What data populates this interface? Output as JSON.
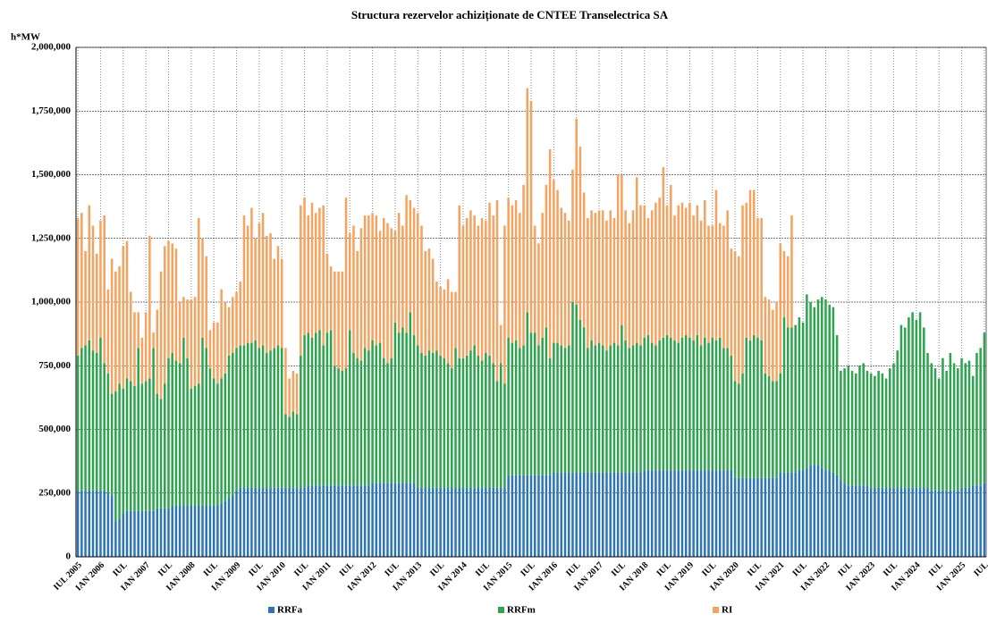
{
  "chart_data": {
    "type": "stacked-bar",
    "title": "Structura rezervelor achiziționate de CNTEE Transelectrica SA",
    "y_label": "h*MW",
    "ylim": [
      0,
      2000000
    ],
    "yticks": [
      0,
      {
        "value": 250000,
        "label": "250,000"
      },
      {
        "value": 500000,
        "label": "500,000"
      },
      {
        "value": 750000,
        "label": "750,000"
      },
      {
        "value": 1000000,
        "label": "1,000,000"
      },
      {
        "value": 1250000,
        "label": "1,250,000"
      },
      {
        "value": 1500000,
        "label": "1,500,000"
      },
      {
        "value": 1750000,
        "label": "1,750,000"
      },
      {
        "value": 2000000,
        "label": "2,000,000"
      }
    ],
    "grid": true,
    "categories": [
      "IUL 2005",
      null,
      null,
      null,
      null,
      null,
      "IAN 2006",
      null,
      null,
      null,
      null,
      null,
      "IUL",
      null,
      null,
      null,
      null,
      null,
      "IAN 2007",
      null,
      null,
      null,
      null,
      null,
      "IUL",
      null,
      null,
      null,
      null,
      null,
      "IAN 2008",
      null,
      null,
      null,
      null,
      null,
      "IUL",
      null,
      null,
      null,
      null,
      null,
      "IAN 2009",
      null,
      null,
      null,
      null,
      null,
      "IUL",
      null,
      null,
      null,
      null,
      null,
      "IAN 2010",
      null,
      null,
      null,
      null,
      null,
      "IUL",
      null,
      null,
      null,
      null,
      null,
      "IAN 2011",
      null,
      null,
      null,
      null,
      null,
      "IUL",
      null,
      null,
      null,
      null,
      null,
      "IAN 2012",
      null,
      null,
      null,
      null,
      null,
      "IUL",
      null,
      null,
      null,
      null,
      null,
      "IAN 2013",
      null,
      null,
      null,
      null,
      null,
      "IUL",
      null,
      null,
      null,
      null,
      null,
      "IAN 2014",
      null,
      null,
      null,
      null,
      null,
      "IUL",
      null,
      null,
      null,
      null,
      null,
      "IAN 2015",
      null,
      null,
      null,
      null,
      null,
      "IUL",
      null,
      null,
      null,
      null,
      null,
      "IAN 2016",
      null,
      null,
      null,
      null,
      null,
      "IUL",
      null,
      null,
      null,
      null,
      null,
      "IAN 2017",
      null,
      null,
      null,
      null,
      null,
      "IUL",
      null,
      null,
      null,
      null,
      null,
      "IAN 2018",
      null,
      null,
      null,
      null,
      null,
      "IUL",
      null,
      null,
      null,
      null,
      null,
      "IAN 2019",
      null,
      null,
      null,
      null,
      null,
      "IUL",
      null,
      null,
      null,
      null,
      null,
      "IAN 2020",
      null,
      null,
      null,
      null,
      null,
      "IUL",
      null,
      null,
      null,
      null,
      null,
      "IAN 2021",
      null,
      null,
      null,
      null,
      null,
      "IUL",
      null,
      null,
      null,
      null,
      null,
      "IAN 2022",
      null,
      null,
      null,
      null,
      null,
      "IUL",
      null,
      null,
      null,
      null,
      null,
      "IAN 2023",
      null,
      null,
      null,
      null,
      null,
      "IUL",
      null,
      null,
      null,
      null,
      null,
      "IAN 2024",
      null,
      null,
      null,
      null,
      null,
      "IUL",
      null,
      null,
      null,
      null,
      null,
      "IAN 2025",
      null,
      null,
      null,
      null,
      null,
      "IUL"
    ],
    "series": [
      {
        "name": "RRFa",
        "color": "#2e75b6",
        "values": [
          260000,
          260000,
          260000,
          260000,
          260000,
          260000,
          260000,
          260000,
          250000,
          240000,
          140000,
          150000,
          170000,
          180000,
          180000,
          180000,
          180000,
          180000,
          180000,
          180000,
          180000,
          190000,
          190000,
          190000,
          190000,
          200000,
          200000,
          200000,
          200000,
          200000,
          200000,
          200000,
          200000,
          200000,
          200000,
          200000,
          200000,
          200000,
          210000,
          220000,
          230000,
          240000,
          260000,
          270000,
          270000,
          270000,
          270000,
          270000,
          270000,
          270000,
          270000,
          270000,
          270000,
          270000,
          270000,
          270000,
          270000,
          270000,
          270000,
          270000,
          270000,
          280000,
          280000,
          280000,
          280000,
          280000,
          280000,
          280000,
          280000,
          280000,
          280000,
          280000,
          280000,
          280000,
          280000,
          280000,
          280000,
          280000,
          290000,
          290000,
          290000,
          290000,
          290000,
          290000,
          290000,
          290000,
          290000,
          290000,
          290000,
          290000,
          270000,
          270000,
          270000,
          270000,
          270000,
          270000,
          270000,
          270000,
          270000,
          270000,
          270000,
          270000,
          270000,
          270000,
          270000,
          270000,
          270000,
          270000,
          270000,
          270000,
          270000,
          270000,
          270000,
          270000,
          320000,
          320000,
          320000,
          320000,
          320000,
          320000,
          320000,
          320000,
          320000,
          320000,
          320000,
          320000,
          330000,
          330000,
          330000,
          330000,
          330000,
          330000,
          330000,
          330000,
          330000,
          330000,
          330000,
          330000,
          330000,
          330000,
          330000,
          330000,
          330000,
          330000,
          330000,
          330000,
          330000,
          330000,
          330000,
          330000,
          340000,
          340000,
          340000,
          340000,
          340000,
          340000,
          340000,
          340000,
          340000,
          340000,
          340000,
          340000,
          340000,
          340000,
          340000,
          340000,
          340000,
          340000,
          340000,
          340000,
          340000,
          340000,
          340000,
          340000,
          310000,
          310000,
          310000,
          310000,
          310000,
          310000,
          310000,
          310000,
          310000,
          310000,
          310000,
          310000,
          330000,
          330000,
          330000,
          330000,
          330000,
          340000,
          340000,
          350000,
          360000,
          360000,
          360000,
          350000,
          340000,
          340000,
          330000,
          320000,
          300000,
          290000,
          280000,
          280000,
          280000,
          280000,
          280000,
          280000,
          270000,
          270000,
          270000,
          270000,
          270000,
          270000,
          270000,
          270000,
          270000,
          270000,
          270000,
          270000,
          270000,
          270000,
          270000,
          270000,
          260000,
          260000,
          260000,
          260000,
          260000,
          260000,
          260000,
          260000,
          270000,
          270000,
          270000,
          280000,
          280000,
          280000,
          290000
        ]
      },
      {
        "name": "RRFm",
        "color": "#2ea44f",
        "values": [
          530000,
          560000,
          570000,
          590000,
          550000,
          540000,
          600000,
          500000,
          470000,
          400000,
          510000,
          530000,
          490000,
          520000,
          510000,
          490000,
          640000,
          500000,
          510000,
          520000,
          640000,
          450000,
          430000,
          490000,
          590000,
          600000,
          570000,
          560000,
          660000,
          580000,
          460000,
          470000,
          480000,
          660000,
          620000,
          540000,
          500000,
          480000,
          490000,
          500000,
          560000,
          560000,
          560000,
          560000,
          560000,
          570000,
          570000,
          580000,
          550000,
          560000,
          530000,
          540000,
          550000,
          560000,
          550000,
          290000,
          280000,
          300000,
          290000,
          520000,
          600000,
          600000,
          580000,
          600000,
          610000,
          550000,
          600000,
          610000,
          470000,
          460000,
          450000,
          460000,
          610000,
          520000,
          500000,
          490000,
          540000,
          530000,
          560000,
          540000,
          550000,
          490000,
          470000,
          490000,
          630000,
          590000,
          610000,
          590000,
          670000,
          580000,
          560000,
          530000,
          520000,
          540000,
          530000,
          540000,
          520000,
          510000,
          490000,
          470000,
          550000,
          510000,
          510000,
          520000,
          540000,
          560000,
          520000,
          500000,
          530000,
          520000,
          490000,
          420000,
          490000,
          410000,
          540000,
          520000,
          530000,
          500000,
          510000,
          640000,
          560000,
          560000,
          510000,
          540000,
          580000,
          460000,
          510000,
          510000,
          500000,
          490000,
          500000,
          670000,
          660000,
          600000,
          570000,
          490000,
          520000,
          500000,
          510000,
          500000,
          480000,
          500000,
          510000,
          500000,
          580000,
          520000,
          490000,
          500000,
          510000,
          500000,
          520000,
          530000,
          500000,
          490000,
          510000,
          520000,
          530000,
          520000,
          510000,
          500000,
          520000,
          530000,
          520000,
          510000,
          530000,
          490000,
          520000,
          500000,
          520000,
          510000,
          520000,
          480000,
          480000,
          450000,
          380000,
          370000,
          410000,
          550000,
          540000,
          560000,
          550000,
          540000,
          410000,
          400000,
          380000,
          380000,
          390000,
          610000,
          570000,
          570000,
          580000,
          600000,
          580000,
          680000,
          640000,
          620000,
          650000,
          670000,
          670000,
          650000,
          650000,
          550000,
          430000,
          450000,
          470000,
          450000,
          440000,
          470000,
          480000,
          450000,
          450000,
          440000,
          460000,
          450000,
          430000,
          470000,
          490000,
          540000,
          640000,
          630000,
          670000,
          690000,
          660000,
          690000,
          630000,
          530000,
          500000,
          480000,
          440000,
          520000,
          470000,
          540000,
          500000,
          480000,
          510000,
          490000,
          500000,
          430000,
          520000,
          540000,
          590000
        ]
      },
      {
        "name": "RI",
        "color": "#f4a460",
        "values": [
          540000,
          530000,
          370000,
          530000,
          490000,
          390000,
          460000,
          580000,
          330000,
          530000,
          470000,
          460000,
          560000,
          540000,
          350000,
          290000,
          140000,
          180000,
          270000,
          560000,
          60000,
          330000,
          500000,
          540000,
          460000,
          430000,
          440000,
          240000,
          160000,
          230000,
          350000,
          350000,
          650000,
          390000,
          360000,
          150000,
          220000,
          240000,
          350000,
          280000,
          190000,
          220000,
          220000,
          250000,
          510000,
          460000,
          530000,
          400000,
          490000,
          520000,
          460000,
          460000,
          350000,
          390000,
          350000,
          260000,
          150000,
          160000,
          160000,
          590000,
          540000,
          460000,
          530000,
          470000,
          480000,
          550000,
          310000,
          250000,
          370000,
          380000,
          390000,
          670000,
          380000,
          500000,
          420000,
          520000,
          520000,
          530000,
          500000,
          510000,
          440000,
          550000,
          550000,
          510000,
          360000,
          470000,
          400000,
          540000,
          440000,
          500000,
          520000,
          500000,
          410000,
          400000,
          370000,
          270000,
          270000,
          270000,
          330000,
          300000,
          220000,
          600000,
          520000,
          540000,
          550000,
          510000,
          510000,
          560000,
          520000,
          600000,
          580000,
          710000,
          150000,
          620000,
          550000,
          540000,
          550000,
          530000,
          630000,
          880000,
          910000,
          420000,
          400000,
          490000,
          560000,
          820000,
          640000,
          600000,
          540000,
          530000,
          490000,
          520000,
          730000,
          680000,
          530000,
          510000,
          510000,
          520000,
          520000,
          530000,
          510000,
          530000,
          490000,
          670000,
          590000,
          510000,
          490000,
          530000,
          650000,
          550000,
          520000,
          460000,
          520000,
          560000,
          560000,
          670000,
          510000,
          600000,
          490000,
          540000,
          530000,
          500000,
          530000,
          490000,
          510000,
          490000,
          540000,
          460000,
          440000,
          590000,
          450000,
          480000,
          540000,
          420000,
          510000,
          500000,
          660000,
          530000,
          590000,
          570000,
          470000,
          480000,
          300000,
          300000,
          280000,
          310000,
          510000,
          260000,
          280000,
          440000,
          0,
          0,
          0,
          0,
          0,
          0,
          0,
          0,
          0,
          0,
          0,
          0,
          0,
          0,
          0,
          0,
          0,
          0,
          0,
          0,
          0,
          0,
          0,
          0,
          0,
          0,
          0,
          0,
          0,
          0,
          0,
          0,
          0,
          0,
          0,
          0,
          0,
          0,
          0,
          0,
          0,
          0,
          0,
          0,
          0,
          0,
          0,
          0,
          0,
          0,
          0
        ]
      }
    ]
  }
}
